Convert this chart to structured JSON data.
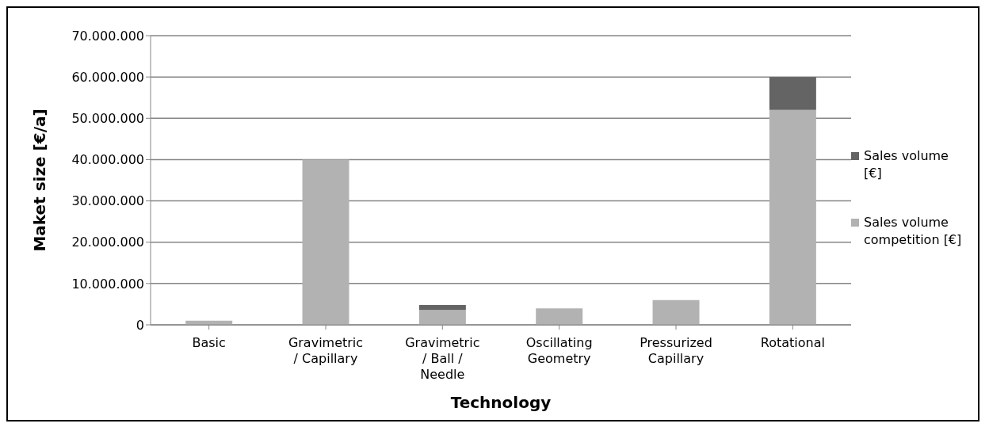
{
  "chart_data": {
    "type": "bar",
    "stacked": true,
    "xlabel": "Technology",
    "ylabel": "Maket size [€/a]",
    "categories": [
      "Basic",
      "Gravimetric / Capillary",
      "Gravimetric / Ball / Needle",
      "Oscillating Geometry",
      "Pressurized Capillary",
      "Rotational"
    ],
    "series": [
      {
        "name": "Sales volume competition [€]",
        "color": "#b2b2b2",
        "values": [
          1000000,
          40000000,
          3600000,
          4000000,
          6000000,
          52000000
        ]
      },
      {
        "name": "Sales volume [€]",
        "color": "#646464",
        "values": [
          0,
          0,
          1200000,
          0,
          0,
          8000000
        ]
      }
    ],
    "ylim": [
      0,
      70000000
    ],
    "yticks": [
      {
        "value": 0,
        "label": "0"
      },
      {
        "value": 10000000,
        "label": "10.000.000"
      },
      {
        "value": 20000000,
        "label": "20.000.000"
      },
      {
        "value": 30000000,
        "label": "30.000.000"
      },
      {
        "value": 40000000,
        "label": "40.000.000"
      },
      {
        "value": 50000000,
        "label": "50.000.000"
      },
      {
        "value": 60000000,
        "label": "60.000.000"
      },
      {
        "value": 70000000,
        "label": "70.000.000"
      }
    ],
    "grid": "y",
    "legend": "right"
  }
}
